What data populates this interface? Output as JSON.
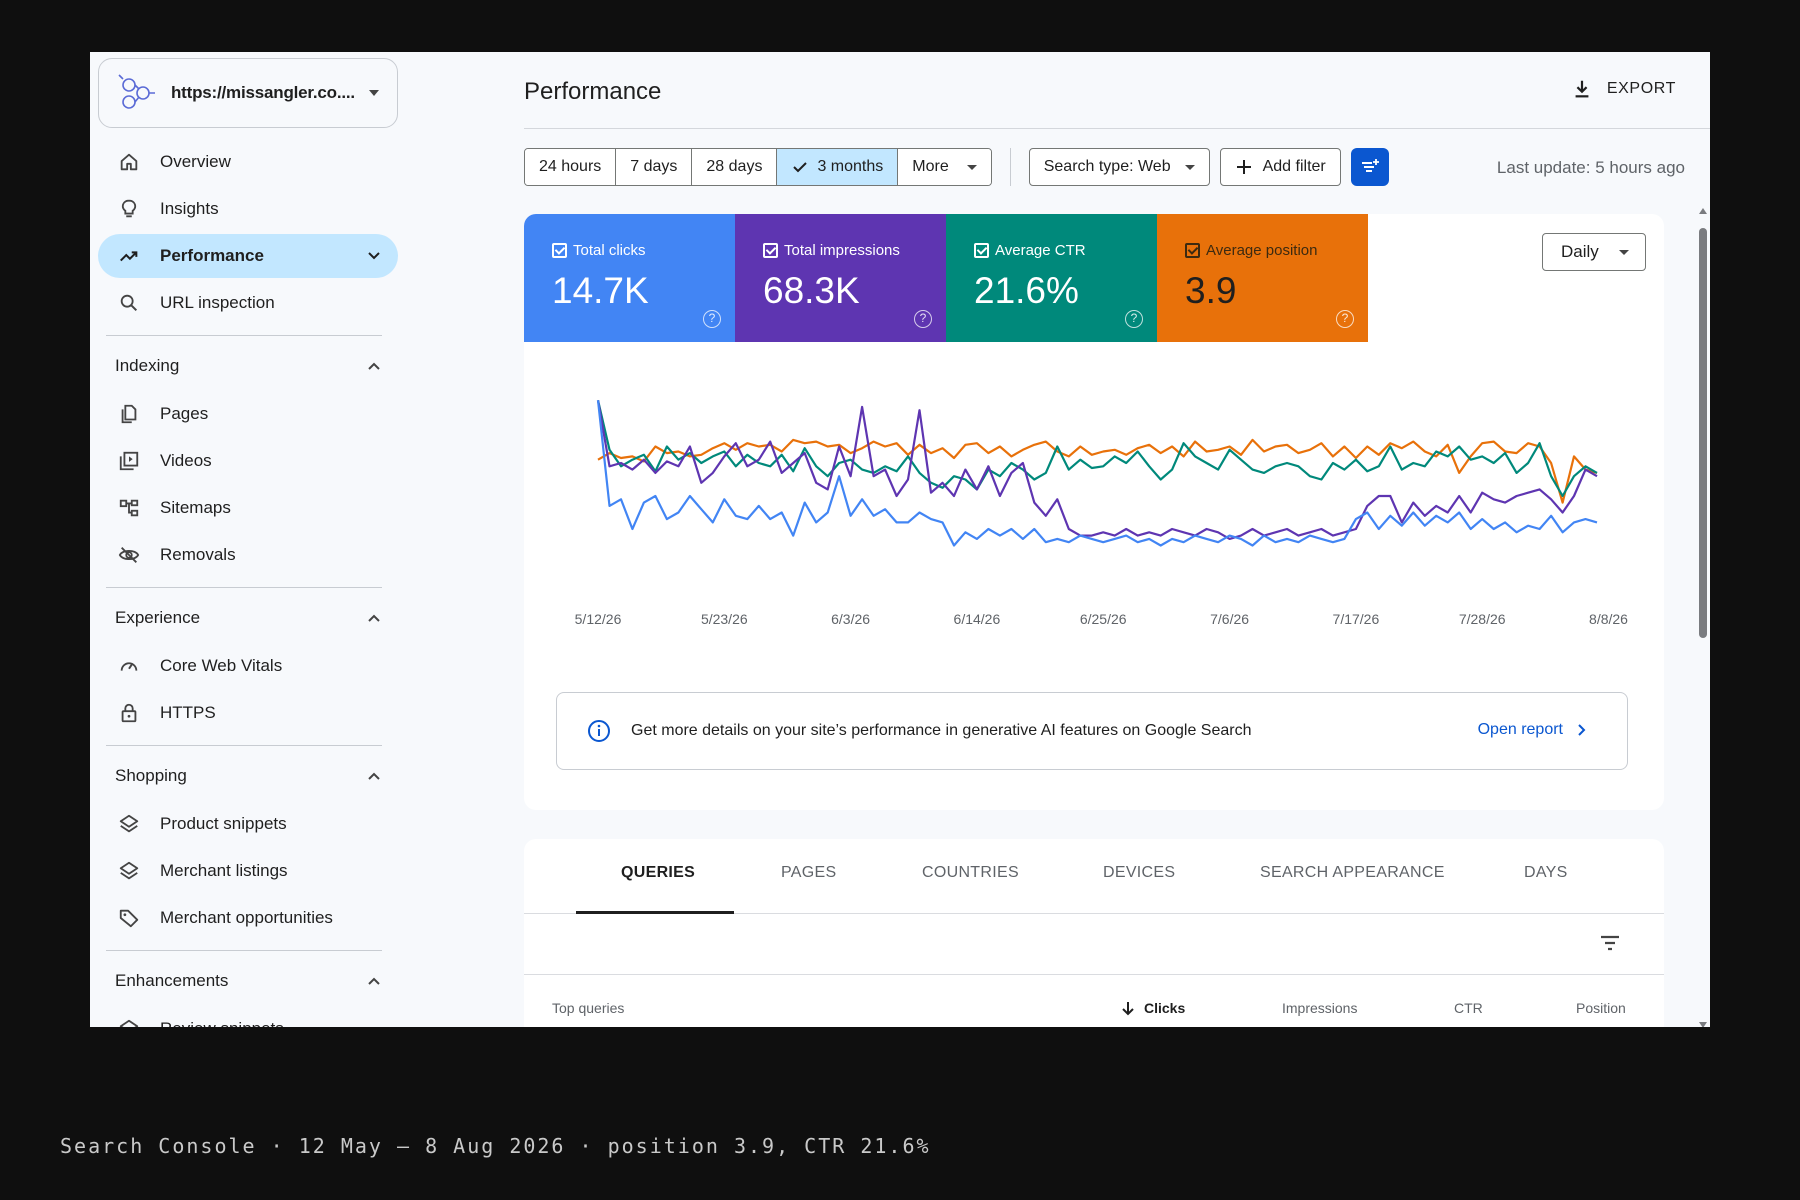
{
  "sidebar": {
    "property_url": "https://missangler.co....",
    "nav": [
      {
        "label": "Overview",
        "icon": "home-icon"
      },
      {
        "label": "Insights",
        "icon": "lightbulb-icon"
      },
      {
        "label": "Performance",
        "icon": "trending-up-icon",
        "active": true
      },
      {
        "label": "URL inspection",
        "icon": "search-icon"
      }
    ],
    "sections": {
      "indexing": {
        "label": "Indexing",
        "items": [
          "Pages",
          "Videos",
          "Sitemaps",
          "Removals"
        ]
      },
      "experience": {
        "label": "Experience",
        "items": [
          "Core Web Vitals",
          "HTTPS"
        ]
      },
      "shopping": {
        "label": "Shopping",
        "items": [
          "Product snippets",
          "Merchant listings",
          "Merchant opportunities"
        ]
      },
      "enhancements": {
        "label": "Enhancements",
        "items": [
          "Review snippets"
        ]
      }
    }
  },
  "header": {
    "title": "Performance",
    "export_label": "EXPORT"
  },
  "filters": {
    "ranges": [
      "24 hours",
      "7 days",
      "28 days",
      "3 months",
      "More"
    ],
    "selected_range": "3 months",
    "search_type": "Search type: Web",
    "add_filter": "Add filter",
    "last_update": "Last update: 5 hours ago"
  },
  "metrics": [
    {
      "label": "Total clicks",
      "value": "14.7K",
      "color": "#4285f4"
    },
    {
      "label": "Total impressions",
      "value": "68.3K",
      "color": "#5e35b1"
    },
    {
      "label": "Average CTR",
      "value": "21.6%",
      "color": "#00897b"
    },
    {
      "label": "Average position",
      "value": "3.9",
      "color": "#e8710a"
    }
  ],
  "granularity": "Daily",
  "chart_data": {
    "type": "line",
    "x_ticks": [
      "5/12/26",
      "5/23/26",
      "6/3/26",
      "6/14/26",
      "6/25/26",
      "7/6/26",
      "7/17/26",
      "7/28/26",
      "8/8/26"
    ],
    "x_start_label": "5/12/26",
    "grid": false,
    "legend": "none",
    "series": [
      {
        "color": "#e8710a",
        "values": [
          0.38,
          0.34,
          0.37,
          0.36,
          0.39,
          0.3,
          0.34,
          0.33,
          0.36,
          0.35,
          0.31,
          0.28,
          0.32,
          0.28,
          0.3,
          0.29,
          0.33,
          0.26,
          0.28,
          0.27,
          0.3,
          0.29,
          0.34,
          0.31,
          0.27,
          0.3,
          0.28,
          0.35,
          0.29,
          0.34,
          0.31,
          0.37,
          0.29,
          0.28,
          0.34,
          0.3,
          0.36,
          0.32,
          0.29,
          0.27,
          0.33,
          0.36,
          0.3,
          0.35,
          0.33,
          0.32,
          0.35,
          0.31,
          0.29,
          0.34,
          0.3,
          0.36,
          0.27,
          0.33,
          0.32,
          0.3,
          0.35,
          0.26,
          0.33,
          0.3,
          0.29,
          0.34,
          0.32,
          0.28,
          0.36,
          0.3,
          0.37,
          0.3,
          0.35,
          0.28,
          0.31,
          0.27,
          0.33,
          0.36,
          0.29,
          0.46,
          0.36,
          0.28,
          0.27,
          0.33,
          0.34,
          0.28,
          0.3,
          0.4,
          0.64,
          0.36,
          0.44,
          0.46
        ]
      },
      {
        "color": "#00897b",
        "values": [
          0.02,
          0.32,
          0.42,
          0.38,
          0.35,
          0.45,
          0.3,
          0.38,
          0.34,
          0.4,
          0.36,
          0.33,
          0.42,
          0.35,
          0.4,
          0.42,
          0.35,
          0.45,
          0.31,
          0.42,
          0.48,
          0.4,
          0.38,
          0.44,
          0.46,
          0.42,
          0.45,
          0.36,
          0.46,
          0.52,
          0.55,
          0.48,
          0.5,
          0.56,
          0.44,
          0.48,
          0.4,
          0.44,
          0.5,
          0.46,
          0.3,
          0.44,
          0.38,
          0.43,
          0.42,
          0.36,
          0.4,
          0.33,
          0.42,
          0.5,
          0.44,
          0.28,
          0.36,
          0.4,
          0.44,
          0.32,
          0.38,
          0.44,
          0.46,
          0.42,
          0.4,
          0.42,
          0.48,
          0.5,
          0.4,
          0.44,
          0.38,
          0.45,
          0.42,
          0.3,
          0.44,
          0.4,
          0.42,
          0.33,
          0.36,
          0.3,
          0.38,
          0.36,
          0.4,
          0.34,
          0.46,
          0.4,
          0.28,
          0.48,
          0.6,
          0.48,
          0.42,
          0.46
        ]
      },
      {
        "color": "#5e35b1",
        "values": [
          0.02,
          0.42,
          0.4,
          0.44,
          0.38,
          0.46,
          0.39,
          0.42,
          0.3,
          0.52,
          0.46,
          0.36,
          0.28,
          0.42,
          0.38,
          0.27,
          0.46,
          0.4,
          0.34,
          0.52,
          0.56,
          0.3,
          0.48,
          0.06,
          0.48,
          0.44,
          0.6,
          0.5,
          0.08,
          0.58,
          0.52,
          0.6,
          0.44,
          0.56,
          0.42,
          0.6,
          0.46,
          0.4,
          0.64,
          0.72,
          0.62,
          0.8,
          0.84,
          0.84,
          0.82,
          0.84,
          0.8,
          0.84,
          0.82,
          0.84,
          0.8,
          0.82,
          0.84,
          0.8,
          0.82,
          0.86,
          0.84,
          0.8,
          0.84,
          0.82,
          0.8,
          0.84,
          0.82,
          0.8,
          0.84,
          0.82,
          0.8,
          0.66,
          0.6,
          0.6,
          0.76,
          0.64,
          0.72,
          0.66,
          0.7,
          0.6,
          0.7,
          0.58,
          0.62,
          0.64,
          0.6,
          0.58,
          0.56,
          0.62,
          0.7,
          0.6,
          0.44,
          0.48
        ]
      },
      {
        "color": "#4285f4",
        "values": [
          0.02,
          0.66,
          0.62,
          0.8,
          0.64,
          0.6,
          0.74,
          0.7,
          0.6,
          0.68,
          0.76,
          0.62,
          0.72,
          0.74,
          0.66,
          0.74,
          0.7,
          0.84,
          0.64,
          0.76,
          0.7,
          0.48,
          0.72,
          0.62,
          0.72,
          0.68,
          0.76,
          0.76,
          0.7,
          0.74,
          0.76,
          0.9,
          0.82,
          0.86,
          0.8,
          0.84,
          0.8,
          0.86,
          0.8,
          0.88,
          0.86,
          0.88,
          0.84,
          0.86,
          0.88,
          0.86,
          0.84,
          0.88,
          0.86,
          0.9,
          0.86,
          0.88,
          0.84,
          0.86,
          0.88,
          0.84,
          0.86,
          0.9,
          0.84,
          0.88,
          0.86,
          0.88,
          0.84,
          0.86,
          0.88,
          0.86,
          0.74,
          0.7,
          0.8,
          0.72,
          0.78,
          0.7,
          0.78,
          0.72,
          0.76,
          0.7,
          0.8,
          0.74,
          0.8,
          0.76,
          0.82,
          0.78,
          0.8,
          0.72,
          0.82,
          0.76,
          0.74,
          0.76
        ]
      }
    ]
  },
  "banner": {
    "message": "Get more details on your site’s performance in generative AI features on Google Search",
    "link": "Open report"
  },
  "tabs": [
    "QUERIES",
    "PAGES",
    "COUNTRIES",
    "DEVICES",
    "SEARCH APPEARANCE",
    "DAYS"
  ],
  "table_headers": {
    "first": "Top queries",
    "clicks": "Clicks",
    "impressions": "Impressions",
    "ctr": "CTR",
    "position": "Position"
  },
  "caption": "Search Console · 12 May – 8 Aug 2026 · position 3.9, CTR 21.6%"
}
